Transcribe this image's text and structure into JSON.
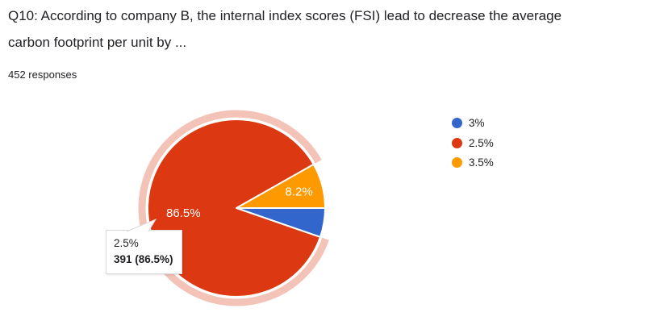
{
  "header": {
    "title_lines": [
      "Q10: According to company B, the internal index scores (FSI) lead to decrease the average",
      "carbon footprint per unit by ..."
    ],
    "response_count": "452 responses"
  },
  "legend": {
    "position": "right",
    "items": [
      {
        "label": "3%",
        "color": "#3366CC"
      },
      {
        "label": "2.5%",
        "color": "#DC3912"
      },
      {
        "label": "3.5%",
        "color": "#FF9900"
      }
    ]
  },
  "tooltip": {
    "answer_label": "2.5%",
    "count_text": "391 (86.5%)"
  },
  "chart_data": {
    "type": "pie",
    "title": "Q10: According to company B, the internal index scores (FSI) lead to decrease the average carbon footprint per unit by ...",
    "subtitle": "452 responses",
    "legend_position": "right",
    "start_angle_deg": 0,
    "direction": "clockwise",
    "slices": [
      {
        "label": "3%",
        "color": "#3366CC",
        "percent": 5.3,
        "slice_text": "",
        "highlighted": false
      },
      {
        "label": "2.5%",
        "color": "#DC3912",
        "percent": 86.5,
        "slice_text": "86.5%",
        "highlighted": true,
        "count": 391
      },
      {
        "label": "3.5%",
        "color": "#FF9900",
        "percent": 8.2,
        "slice_text": "8.2%",
        "highlighted": false
      }
    ],
    "tooltip": {
      "line1": "2.5%",
      "line2": "391 (86.5%)"
    },
    "style": {
      "slice_border_color": "#ffffff",
      "halo_opacity": 0.3
    }
  }
}
